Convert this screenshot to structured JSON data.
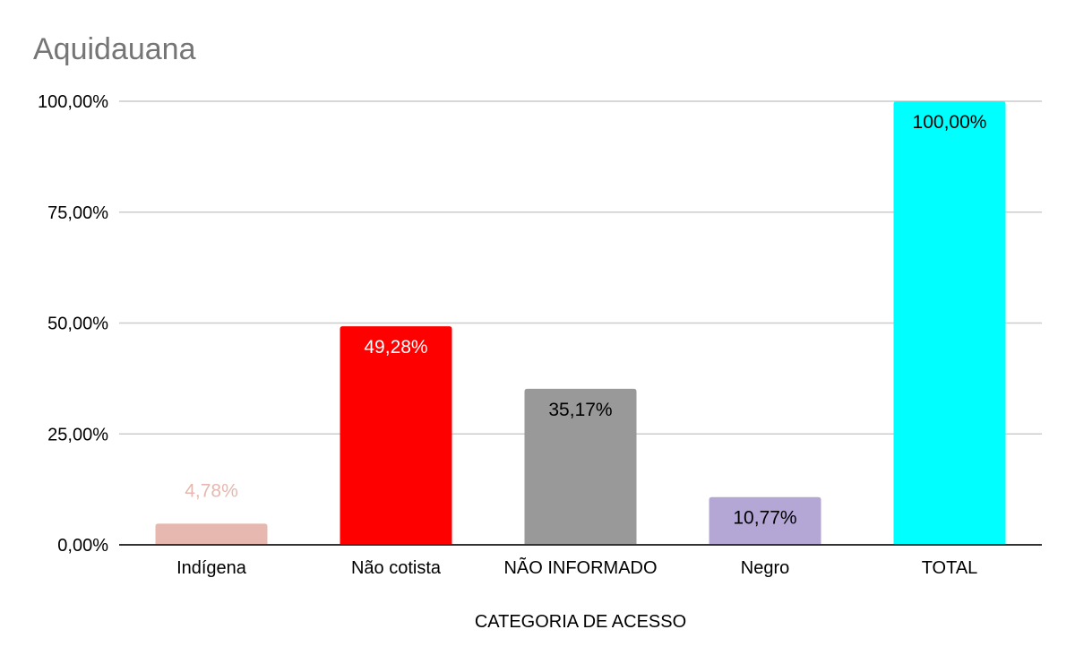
{
  "chart_data": {
    "type": "bar",
    "title": "Aquidauana",
    "xlabel": "CATEGORIA DE ACESSO",
    "ylabel": "",
    "categories": [
      "Indígena",
      "Não cotista",
      "NÃO INFORMADO",
      "Negro",
      "TOTAL"
    ],
    "values": [
      4.78,
      49.28,
      35.17,
      10.77,
      100.0
    ],
    "value_labels": [
      "4,78%",
      "49,28%",
      "35,17%",
      "10,77%",
      "100,00%"
    ],
    "bar_colors": [
      "#e6b8af",
      "#ff0000",
      "#999999",
      "#b4a7d6",
      "#00ffff"
    ],
    "label_colors": [
      "#e6b8af",
      "#ffffff",
      "#000000",
      "#000000",
      "#000000"
    ],
    "ylim": [
      0,
      100
    ],
    "yticks": [
      0,
      25,
      50,
      75,
      100
    ],
    "ytick_labels": [
      "0,00%",
      "25,00%",
      "50,00%",
      "75,00%",
      "100,00%"
    ],
    "grid": true,
    "legend": "none"
  }
}
